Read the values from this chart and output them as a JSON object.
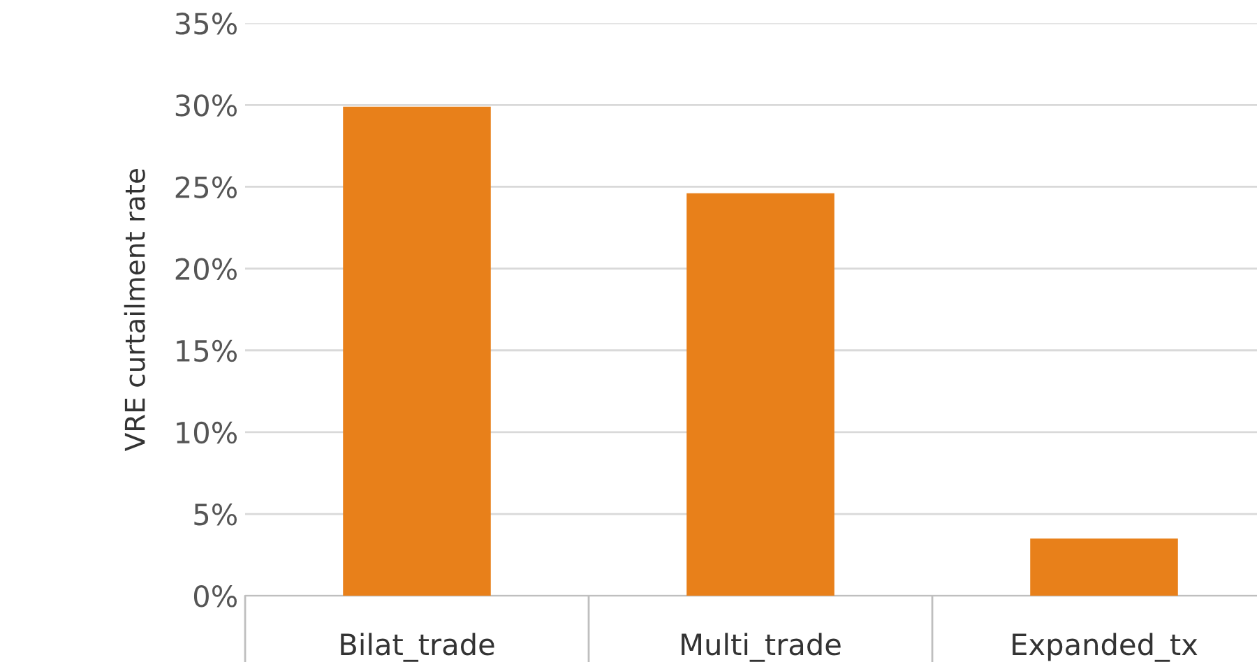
{
  "chart_data": {
    "type": "bar",
    "ylabel": "VRE curtailment rate",
    "categories": [
      "Bilat_trade",
      "Multi_trade",
      "Expanded_tx"
    ],
    "values": [
      29.9,
      24.6,
      3.5
    ],
    "color": "#e8801a",
    "ylim": [
      0,
      35
    ],
    "yticks": [
      {
        "value": 0,
        "label": "0%"
      },
      {
        "value": 5,
        "label": "5%"
      },
      {
        "value": 10,
        "label": "10%"
      },
      {
        "value": 15,
        "label": "15%"
      },
      {
        "value": 20,
        "label": "20%"
      },
      {
        "value": 25,
        "label": "25%"
      },
      {
        "value": 30,
        "label": "30%"
      },
      {
        "value": 35,
        "label": "35%"
      }
    ],
    "grid": "y",
    "legend": false
  }
}
